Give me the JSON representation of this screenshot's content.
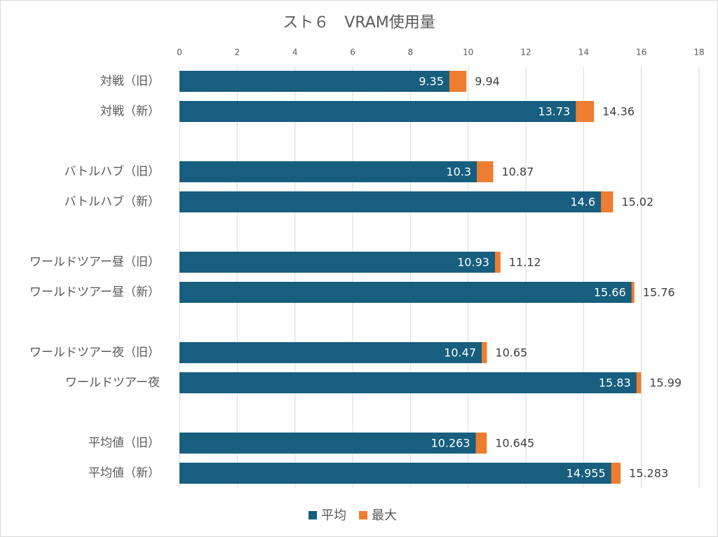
{
  "chart_data": {
    "type": "bar",
    "orientation": "horizontal",
    "title": "スト６　VRAM使用量",
    "categories": [
      "対戦（旧）",
      "対戦（新）",
      null,
      "バトルハブ（旧）",
      "バトルハブ（新）",
      null,
      "ワールドツアー昼（旧）",
      "ワールドツアー昼（新）",
      null,
      "ワールドツアー夜（旧）",
      "ワールドツアー夜",
      null,
      "平均値（旧）",
      "平均値（新）"
    ],
    "series": [
      {
        "name": "平均",
        "color": "#175e7f",
        "values": [
          9.35,
          13.73,
          null,
          10.3,
          14.6,
          null,
          10.93,
          15.66,
          null,
          10.47,
          15.83,
          null,
          10.263,
          14.955
        ]
      },
      {
        "name": "最大",
        "color": "#ed7d31",
        "values": [
          9.94,
          14.36,
          null,
          10.87,
          15.02,
          null,
          11.12,
          15.76,
          null,
          10.65,
          15.99,
          null,
          10.645,
          15.283
        ]
      }
    ],
    "xlim": [
      0,
      18
    ],
    "xticks": [
      0,
      2,
      4,
      6,
      8,
      10,
      12,
      14,
      16,
      18
    ],
    "grid": true,
    "legend": "bottom"
  }
}
